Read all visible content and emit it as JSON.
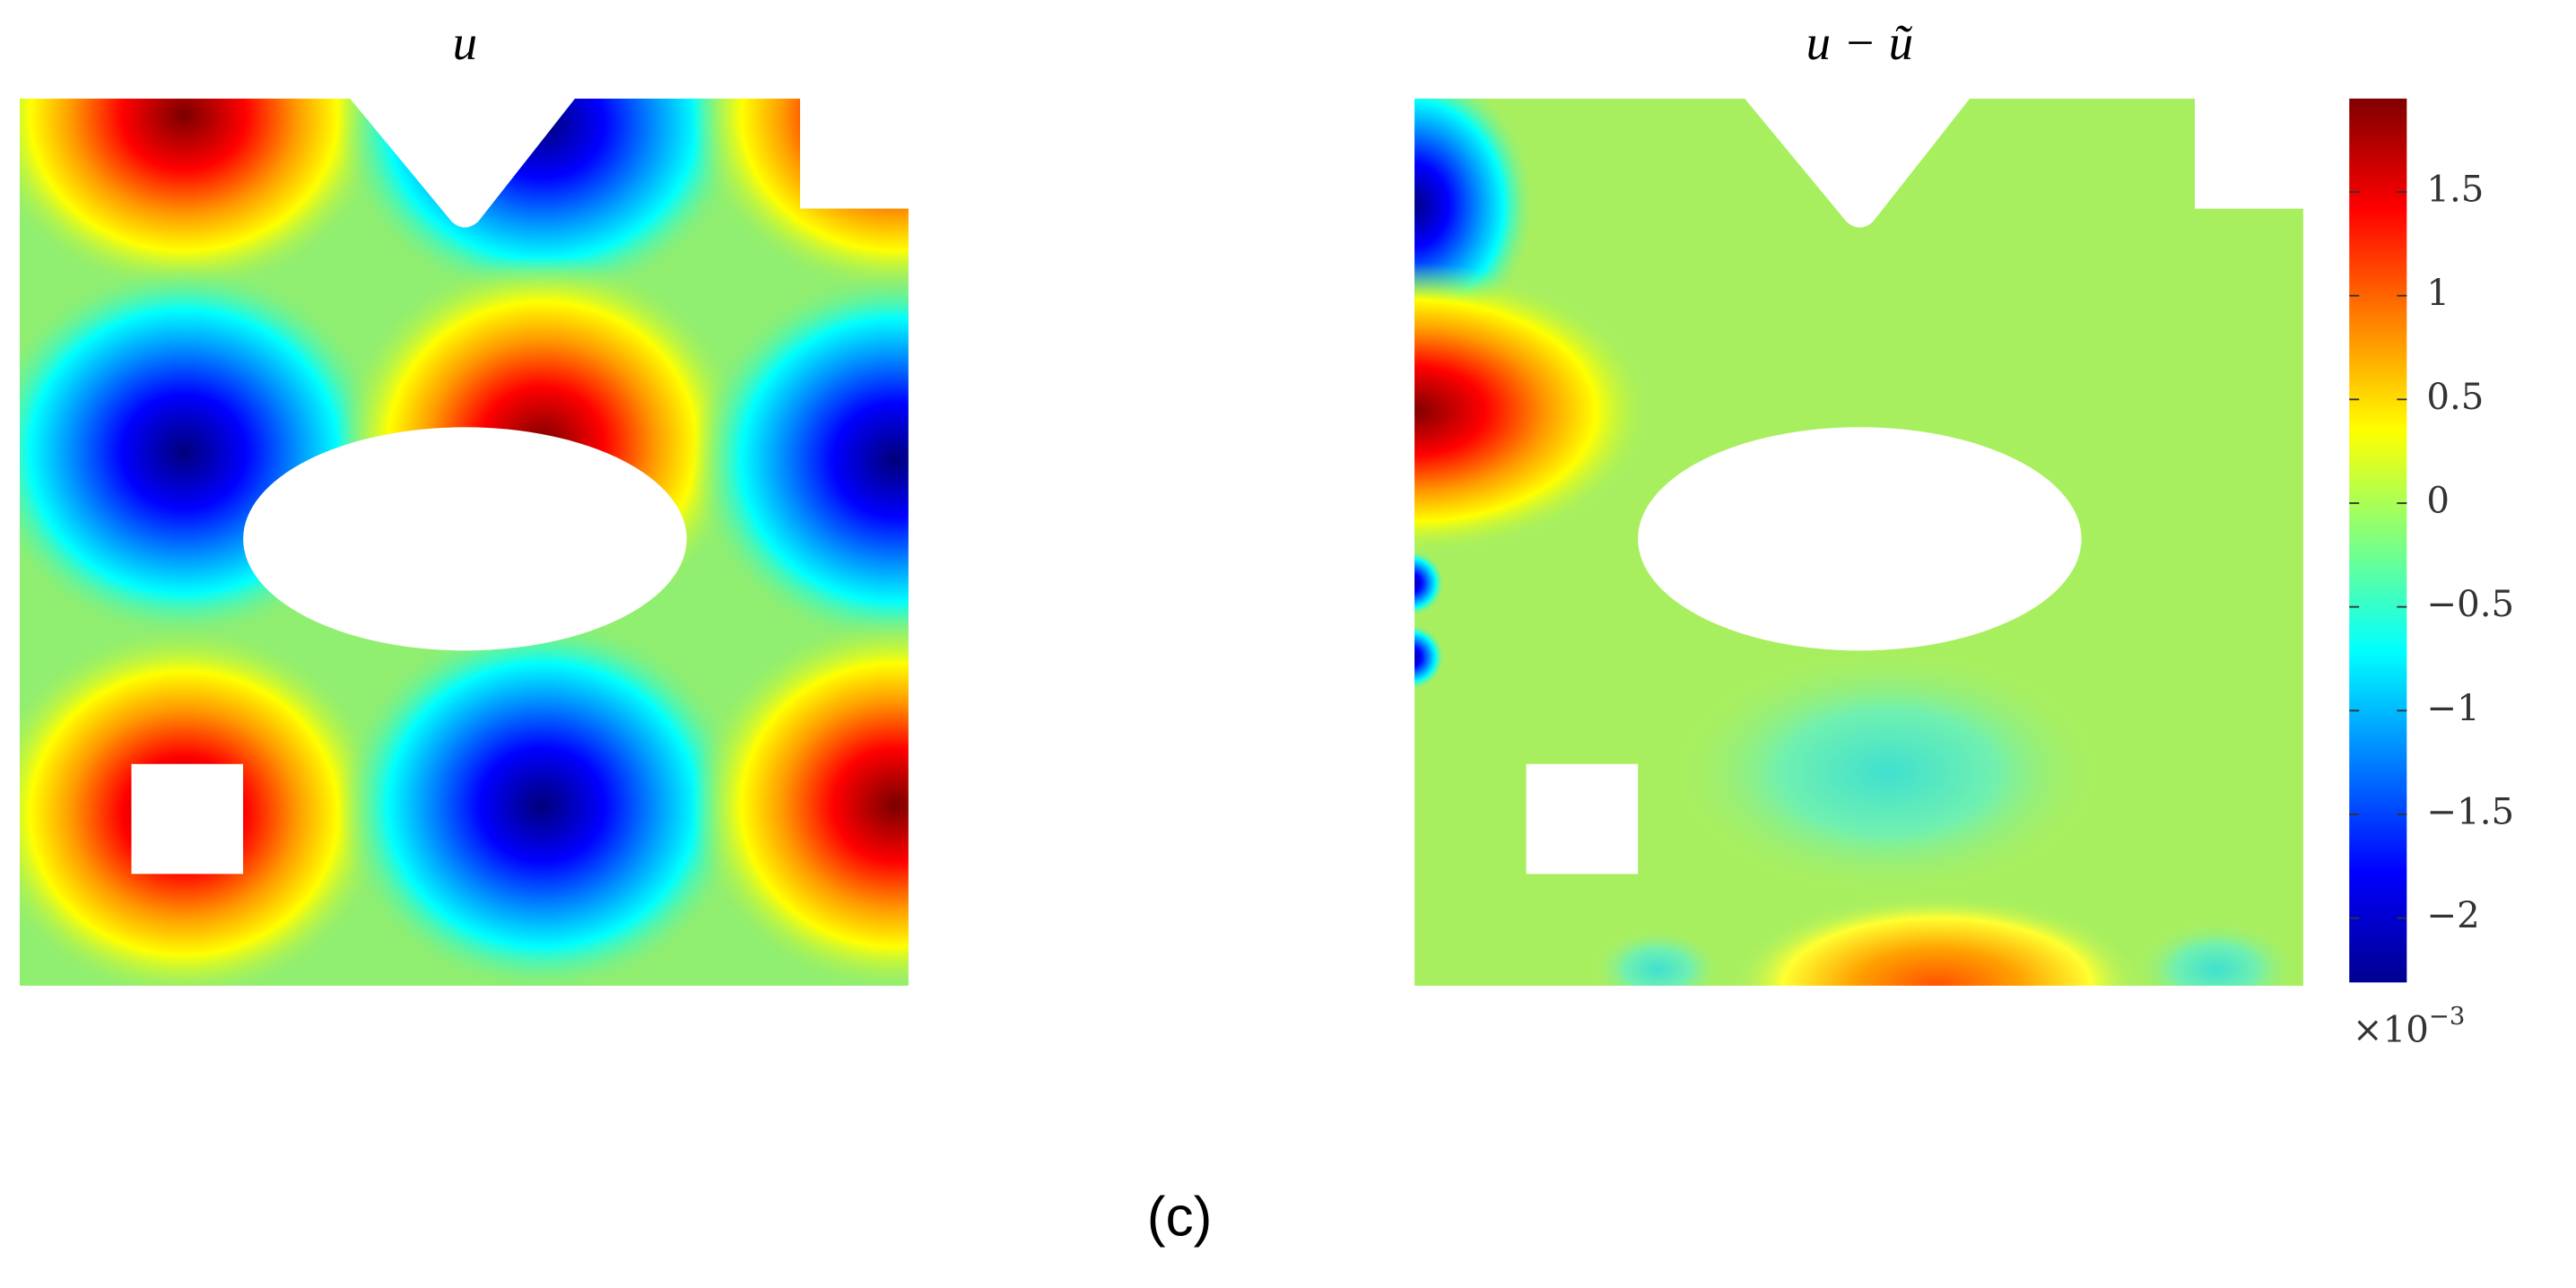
{
  "chart_data": {
    "type": "heatmap",
    "panels": [
      {
        "title": "u"
      },
      {
        "title": "u − ũ"
      }
    ],
    "colorbar": {
      "zlim": [
        -2.31,
        1.95
      ],
      "zticks": [
        1.5,
        1,
        0.5,
        0,
        {
          "value": -0.5,
          "label": "−0.5"
        },
        {
          "value": -1,
          "label": "−1"
        },
        {
          "value": -1.5,
          "label": "−1.5"
        },
        {
          "value": -2,
          "label": "−2"
        }
      ],
      "multiplier": {
        "base": "×10",
        "exponent": "−3"
      }
    },
    "caption": "(c)"
  }
}
